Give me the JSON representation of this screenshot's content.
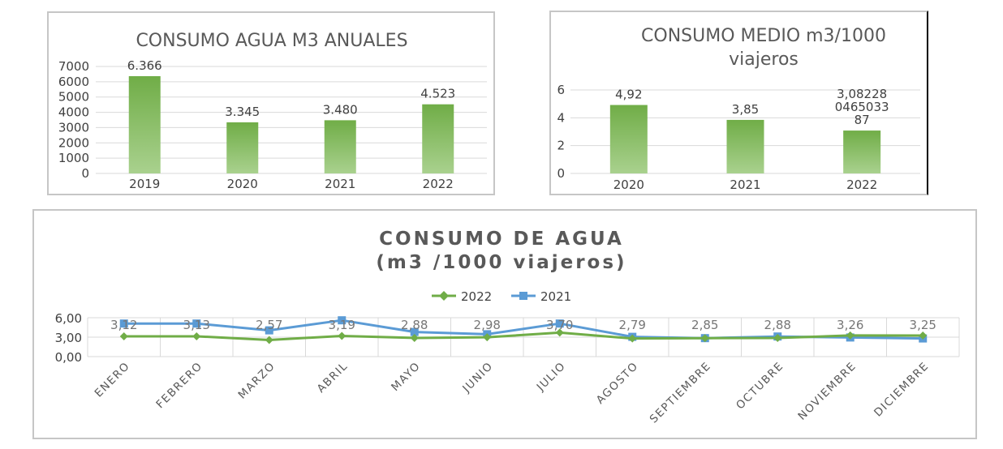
{
  "chart_data": [
    {
      "type": "bar",
      "title": "CONSUMO AGUA M3 ANUALES",
      "categories": [
        "2019",
        "2020",
        "2021",
        "2022"
      ],
      "values": [
        6366,
        3345,
        3480,
        4523
      ],
      "data_labels": [
        "6.366",
        "3.345",
        "3.480",
        "4.523"
      ],
      "ylim": [
        0,
        7000
      ],
      "yticks": [
        "0",
        "1000",
        "2000",
        "3000",
        "4000",
        "5000",
        "6000",
        "7000"
      ],
      "grid": true,
      "bar_color_top": "#70ad47",
      "bar_color_bottom": "#a9d18e"
    },
    {
      "type": "bar",
      "title_lines": [
        "CONSUMO MEDIO m3/1000",
        "viajeros"
      ],
      "categories": [
        "2020",
        "2021",
        "2022"
      ],
      "values": [
        4.92,
        3.85,
        3.08228046503387
      ],
      "data_labels": [
        [
          "4,92"
        ],
        [
          "3,85"
        ],
        [
          "3,08228",
          "0465033",
          "87"
        ]
      ],
      "ylim": [
        0,
        6
      ],
      "yticks": [
        "0",
        "2",
        "4",
        "6"
      ],
      "grid": true,
      "bar_color_top": "#70ad47",
      "bar_color_bottom": "#a9d18e"
    },
    {
      "type": "line",
      "title_lines": [
        "CONSUMO DE AGUA",
        "(m3 /1000 viajeros)"
      ],
      "categories": [
        "ENERO",
        "FEBRERO",
        "MARZO",
        "ABRIL",
        "MAYO",
        "JUNIO",
        "JULIO",
        "AGOSTO",
        "SEPTIEMBRE",
        "OCTUBRE",
        "NOVIEMBRE",
        "DICIEMBRE"
      ],
      "ylim": [
        0,
        6
      ],
      "yticks": [
        "0,00",
        "3,00",
        "6,00"
      ],
      "legend_position": "top",
      "grid": true,
      "series": [
        {
          "name": "2022",
          "color": "#70ad47",
          "marker": "diamond",
          "values": [
            3.12,
            3.13,
            2.57,
            3.19,
            2.88,
            2.98,
            3.7,
            2.79,
            2.85,
            2.88,
            3.26,
            3.25
          ],
          "labels": [
            "3,12",
            "3,13",
            "2,57",
            "3,19",
            "2,88",
            "2,98",
            "3,70",
            "2,79",
            "2,85",
            "2,88",
            "3,26",
            "3,25"
          ]
        },
        {
          "name": "2021",
          "color": "#5b9bd5",
          "marker": "square",
          "values": [
            5.1,
            5.1,
            4.05,
            5.6,
            3.8,
            3.45,
            5.1,
            3.05,
            2.85,
            3.1,
            2.95,
            2.8
          ]
        }
      ]
    }
  ]
}
